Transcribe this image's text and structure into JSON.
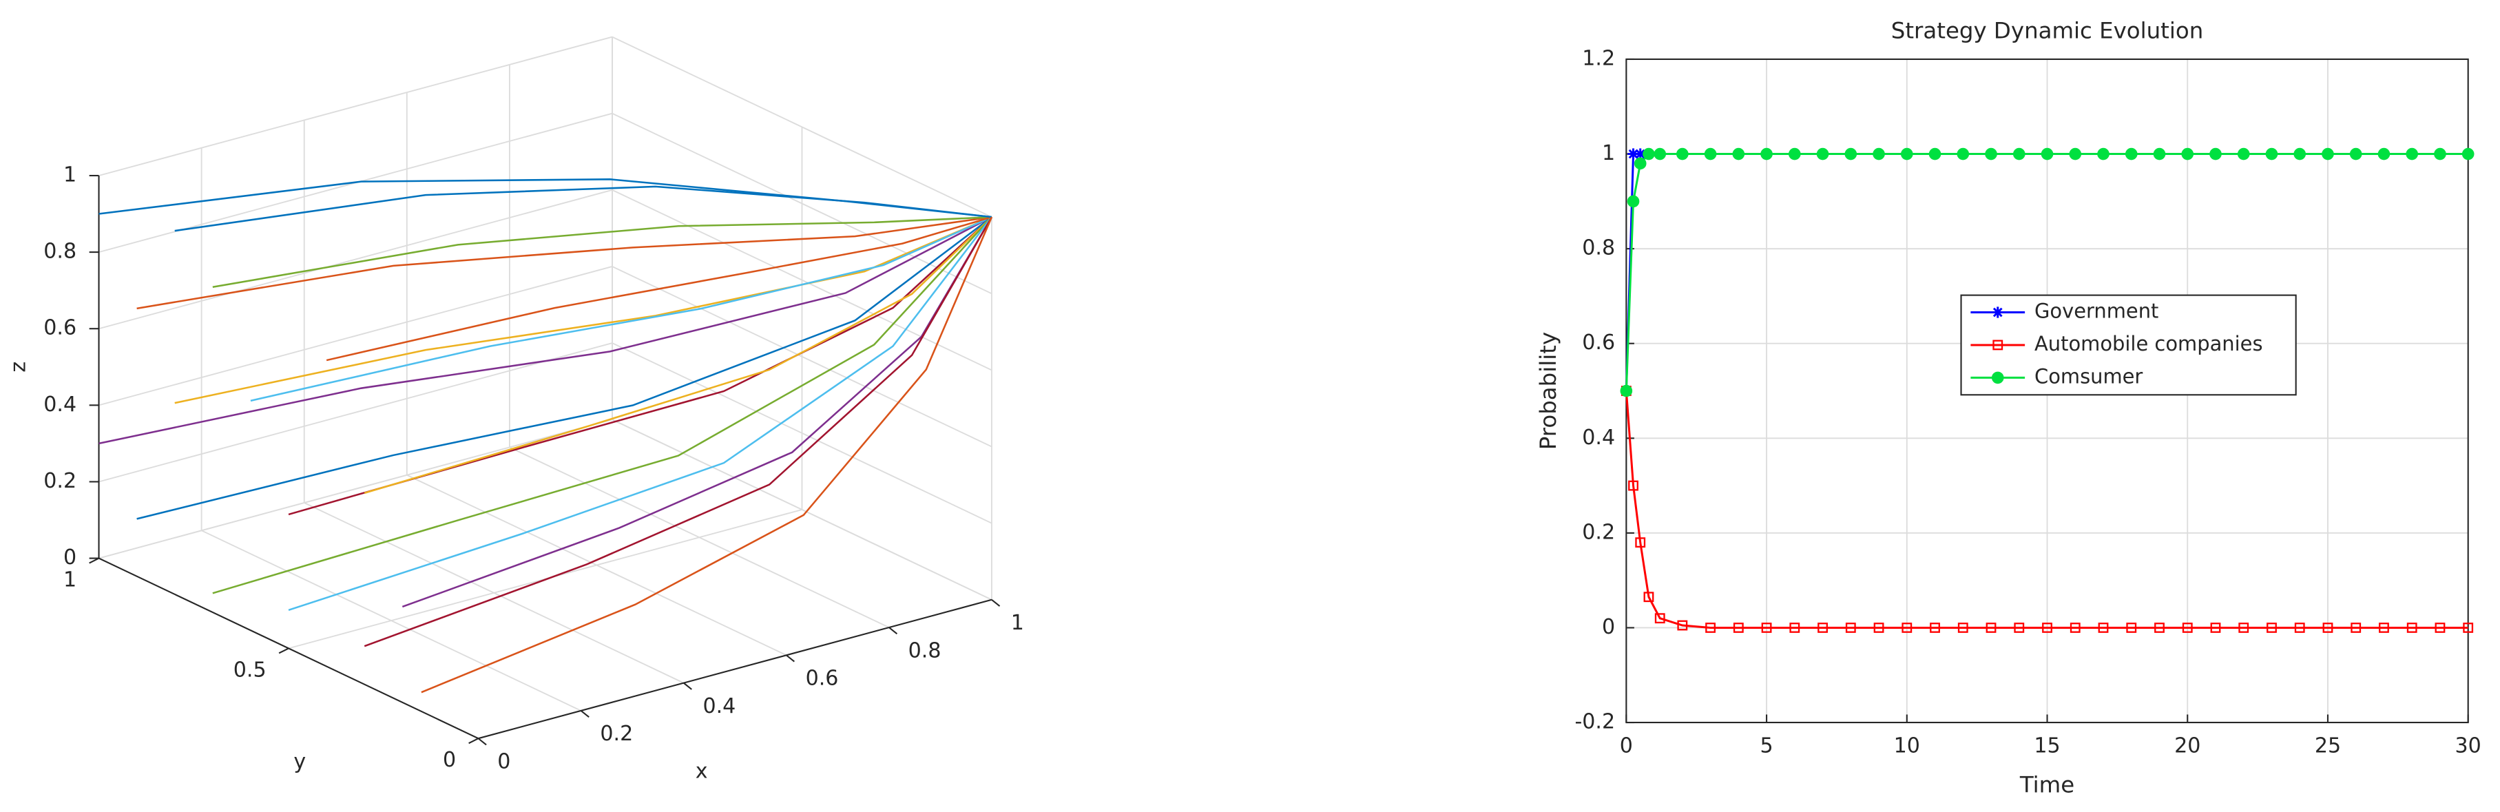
{
  "chart_data": [
    {
      "type": "line3d",
      "xlabel": "x",
      "ylabel": "y",
      "zlabel": "z",
      "xlim": [
        0,
        1
      ],
      "ylim": [
        0,
        1
      ],
      "zlim": [
        0,
        1
      ],
      "xticks": [
        0,
        0.2,
        0.4,
        0.6,
        0.8,
        1
      ],
      "yticks": [
        0,
        0.5,
        1
      ],
      "zticks": [
        0,
        0.2,
        0.4,
        0.6,
        0.8,
        1
      ],
      "grid": true,
      "series": [
        {
          "color": "#0072bd",
          "x": [
            0,
            0.4,
            0.7,
            0.9,
            1
          ],
          "y": [
            1,
            0.85,
            0.6,
            0.25,
            0
          ],
          "z": [
            0.9,
            0.91,
            0.925,
            0.96,
            1
          ]
        },
        {
          "color": "#d95319",
          "x": [
            0,
            0.4,
            0.7,
            0.9,
            1
          ],
          "y": [
            0.9,
            0.765,
            0.54,
            0.225,
            0
          ],
          "z": [
            0.7,
            0.73,
            0.775,
            0.88,
            1
          ]
        },
        {
          "color": "#edb120",
          "x": [
            0,
            0.4,
            0.7,
            0.9,
            1
          ],
          "y": [
            0.8,
            0.68,
            0.48,
            0.2,
            0
          ],
          "z": [
            0.5,
            0.55,
            0.625,
            0.8,
            1
          ]
        },
        {
          "color": "#7e2f8e",
          "x": [
            0,
            0.4,
            0.7,
            0.9,
            1
          ],
          "y": [
            1,
            0.85,
            0.6,
            0.25,
            0
          ],
          "z": [
            0.3,
            0.37,
            0.475,
            0.72,
            1
          ]
        },
        {
          "color": "#77ac30",
          "x": [
            0,
            0.4,
            0.7,
            0.9,
            1
          ],
          "y": [
            0.7,
            0.595,
            0.42,
            0.175,
            0
          ],
          "z": [
            0.85,
            0.865,
            0.8875,
            0.94,
            1
          ]
        },
        {
          "color": "#4dbeee",
          "x": [
            0,
            0.4,
            0.7,
            0.9,
            1
          ],
          "y": [
            0.6,
            0.51,
            0.36,
            0.15,
            0
          ],
          "z": [
            0.6,
            0.64,
            0.7,
            0.84,
            1
          ]
        },
        {
          "color": "#a2142f",
          "x": [
            0,
            0.4,
            0.7,
            0.9,
            1
          ],
          "y": [
            0.5,
            0.425,
            0.3,
            0.125,
            0
          ],
          "z": [
            0.35,
            0.415,
            0.5125,
            0.74,
            1
          ]
        },
        {
          "color": "#0072bd",
          "x": [
            0,
            0.4,
            0.7,
            0.9,
            1
          ],
          "y": [
            0.9,
            0.765,
            0.54,
            0.225,
            0
          ],
          "z": [
            0.15,
            0.235,
            0.3625,
            0.66,
            1
          ]
        },
        {
          "color": "#d95319",
          "x": [
            0,
            0.4,
            0.7,
            0.9,
            1
          ],
          "y": [
            0.4,
            0.34,
            0.24,
            0.1,
            0
          ],
          "z": [
            0.8,
            0.82,
            0.85,
            0.92,
            1
          ]
        },
        {
          "color": "#edb120",
          "x": [
            0,
            0.4,
            0.7,
            0.9,
            1
          ],
          "y": [
            0.3,
            0.255,
            0.18,
            0.075,
            0
          ],
          "z": [
            0.5,
            0.55,
            0.625,
            0.8,
            1
          ]
        },
        {
          "color": "#7e2f8e",
          "x": [
            0,
            0.4,
            0.7,
            0.9,
            1
          ],
          "y": [
            0.2,
            0.17,
            0.12,
            0.05,
            0
          ],
          "z": [
            0.25,
            0.325,
            0.4375,
            0.7,
            1
          ]
        },
        {
          "color": "#77ac30",
          "x": [
            0,
            0.4,
            0.7,
            0.9,
            1
          ],
          "y": [
            0.7,
            0.595,
            0.42,
            0.175,
            0
          ],
          "z": [
            0.05,
            0.145,
            0.2875,
            0.62,
            1
          ]
        },
        {
          "color": "#4dbeee",
          "x": [
            0,
            0.4,
            0.7,
            0.9,
            1
          ],
          "y": [
            0.5,
            0.425,
            0.3,
            0.125,
            0
          ],
          "z": [
            0.1,
            0.19,
            0.325,
            0.64,
            1
          ]
        },
        {
          "color": "#a2142f",
          "x": [
            0,
            0.4,
            0.7,
            0.9,
            1
          ],
          "y": [
            0.3,
            0.255,
            0.18,
            0.075,
            0
          ],
          "z": [
            0.1,
            0.19,
            0.325,
            0.64,
            1
          ]
        },
        {
          "color": "#0072bd",
          "x": [
            0,
            0.4,
            0.7,
            0.9,
            1
          ],
          "y": [
            0.8,
            0.68,
            0.48,
            0.2,
            0
          ],
          "z": [
            0.95,
            0.955,
            0.9625,
            0.98,
            1
          ]
        },
        {
          "color": "#d95319",
          "x": [
            0,
            0.4,
            0.7,
            0.9,
            1
          ],
          "y": [
            0.15,
            0.1275,
            0.09,
            0.0375,
            0
          ],
          "z": [
            0.05,
            0.145,
            0.2875,
            0.62,
            1
          ]
        }
      ]
    },
    {
      "type": "line",
      "title": "Strategy Dynamic Evolution",
      "xlabel": "Time",
      "ylabel": "Probability",
      "x": [
        0,
        0.25,
        0.5,
        0.8,
        1.2,
        2,
        3,
        4,
        5,
        6,
        7,
        8,
        9,
        10,
        11,
        12,
        13,
        14,
        15,
        16,
        17,
        18,
        19,
        20,
        21,
        22,
        23,
        24,
        25,
        26,
        27,
        28,
        29,
        30
      ],
      "xlim": [
        0,
        30
      ],
      "xticks": [
        0,
        5,
        10,
        15,
        20,
        25,
        30
      ],
      "ylim": [
        -0.2,
        1.2
      ],
      "yticks": [
        -0.2,
        0,
        0.2,
        0.4,
        0.6,
        0.8,
        1,
        1.2
      ],
      "grid": true,
      "legend": "right",
      "series": [
        {
          "name": "Government",
          "color": "#0000ff",
          "marker": "asterisk",
          "values": [
            0.5,
            1,
            1,
            1,
            1,
            1,
            1,
            1,
            1,
            1,
            1,
            1,
            1,
            1,
            1,
            1,
            1,
            1,
            1,
            1,
            1,
            1,
            1,
            1,
            1,
            1,
            1,
            1,
            1,
            1,
            1,
            1,
            1,
            1
          ]
        },
        {
          "name": "Automobile companies",
          "color": "#ff0000",
          "marker": "square",
          "values": [
            0.5,
            0.3,
            0.18,
            0.065,
            0.02,
            0.005,
            0,
            0,
            0,
            0,
            0,
            0,
            0,
            0,
            0,
            0,
            0,
            0,
            0,
            0,
            0,
            0,
            0,
            0,
            0,
            0,
            0,
            0,
            0,
            0,
            0,
            0,
            0,
            0
          ]
        },
        {
          "name": "Comsumer",
          "color": "#00e040",
          "marker": "circle",
          "values": [
            0.5,
            0.9,
            0.98,
            1,
            1,
            1,
            1,
            1,
            1,
            1,
            1,
            1,
            1,
            1,
            1,
            1,
            1,
            1,
            1,
            1,
            1,
            1,
            1,
            1,
            1,
            1,
            1,
            1,
            1,
            1,
            1,
            1,
            1,
            1
          ]
        }
      ]
    }
  ]
}
